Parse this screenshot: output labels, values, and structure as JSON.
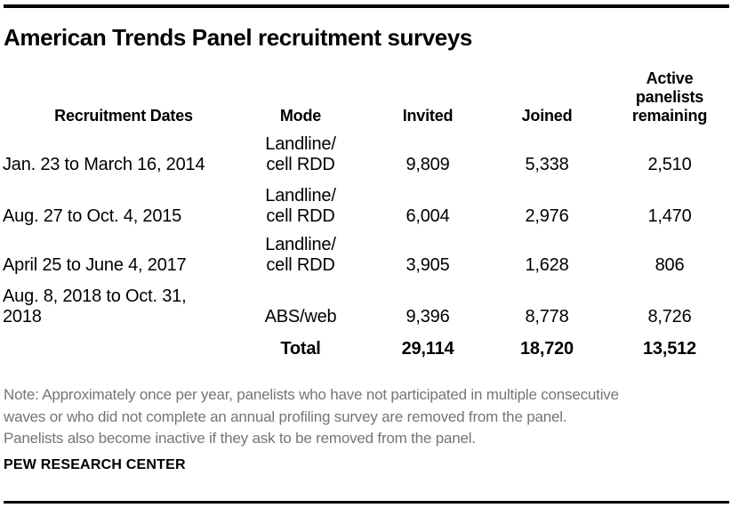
{
  "title": "American Trends Panel recruitment surveys",
  "table": {
    "headers": {
      "dates": "Recruitment Dates",
      "mode": "Mode",
      "invited": "Invited",
      "joined": "Joined",
      "active": "Active\npanelists\nremaining"
    },
    "rows": [
      {
        "date": "Jan. 23 to March 16, 2014",
        "mode": "Landline/\ncell RDD",
        "invited": "9,809",
        "joined": "5,338",
        "active": "2,510"
      },
      {
        "date": "Aug. 27 to Oct. 4, 2015",
        "mode": "Landline/\ncell RDD",
        "invited": "6,004",
        "joined": "2,976",
        "active": "1,470"
      },
      {
        "date": "April 25 to June 4, 2017",
        "mode": "Landline/\ncell RDD",
        "invited": "3,905",
        "joined": "1,628",
        "active": "806"
      },
      {
        "date": "Aug. 8, 2018 to Oct. 31,\n2018",
        "mode": "ABS/web",
        "invited": "9,396",
        "joined": "8,778",
        "active": "8,726"
      }
    ],
    "total": {
      "label": "Total",
      "invited": "29,114",
      "joined": "18,720",
      "active": "13,512"
    }
  },
  "note": "Note: Approximately once per year, panelists who have not participated in multiple consecutive\nwaves or who did not complete an annual profiling survey are removed from the panel.\nPanelists also become inactive if they ask to be removed from the panel.",
  "source": "PEW RESEARCH CENTER",
  "colors": {
    "text": "#000000",
    "note_text": "#757575",
    "rule": "#000000",
    "background": "#ffffff"
  },
  "chart_data": {
    "type": "table",
    "title": "American Trends Panel recruitment surveys",
    "columns": [
      "Recruitment Dates",
      "Mode",
      "Invited",
      "Joined",
      "Active panelists remaining"
    ],
    "rows": [
      [
        "Jan. 23 to March 16, 2014",
        "Landline/cell RDD",
        9809,
        5338,
        2510
      ],
      [
        "Aug. 27 to Oct. 4, 2015",
        "Landline/cell RDD",
        6004,
        2976,
        1470
      ],
      [
        "April 25 to June 4, 2017",
        "Landline/cell RDD",
        3905,
        1628,
        806
      ],
      [
        "Aug. 8, 2018 to Oct. 31, 2018",
        "ABS/web",
        9396,
        8778,
        8726
      ]
    ],
    "total_row": [
      "Total",
      29114,
      18720,
      13512
    ],
    "note": "Note: Approximately once per year, panelists who have not participated in multiple consecutive waves or who did not complete an annual profiling survey are removed from the panel. Panelists also become inactive if they ask to be removed from the panel.",
    "source": "PEW RESEARCH CENTER"
  }
}
